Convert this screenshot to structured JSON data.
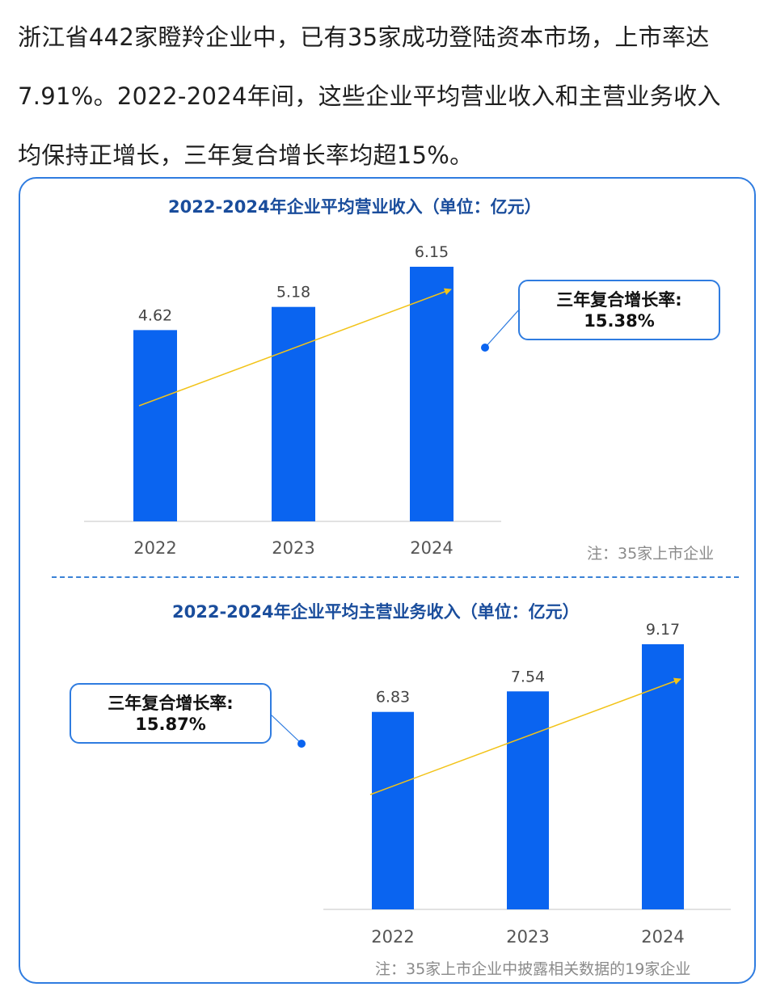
{
  "intro": {
    "lines": [
      "浙江省442家瞪羚企业中，已有35家成功登陆资本市场，上市率达",
      "7.91%。2022-2024年间，这些企业平均营业收入和主营业务收入",
      "均保持正增长，三年复合增长率均超15%。"
    ]
  },
  "colors": {
    "bar": "#0a64f0",
    "trend": "#f2c318",
    "accent": "#2f7ce0",
    "title": "#1a4d9c"
  },
  "chart_data": [
    {
      "type": "bar",
      "title": "2022-2024年企业平均营业收入（单位：亿元）",
      "categories": [
        "2022",
        "2023",
        "2024"
      ],
      "values": [
        4.62,
        5.18,
        6.15
      ],
      "ylim": [
        0,
        6.15
      ],
      "trend_arrow": true,
      "annotation": {
        "label": "三年复合增长率:",
        "value": "15.38%"
      },
      "note": "注：35家上市企业"
    },
    {
      "type": "bar",
      "title": "2022-2024年企业平均主营业务收入（单位：亿元）",
      "categories": [
        "2022",
        "2023",
        "2024"
      ],
      "values": [
        6.83,
        7.54,
        9.17
      ],
      "ylim": [
        0,
        9.17
      ],
      "trend_arrow": true,
      "annotation": {
        "label": "三年复合增长率:",
        "value": "15.87%"
      },
      "note": "注：35家上市企业中披露相关数据的19家企业"
    }
  ]
}
